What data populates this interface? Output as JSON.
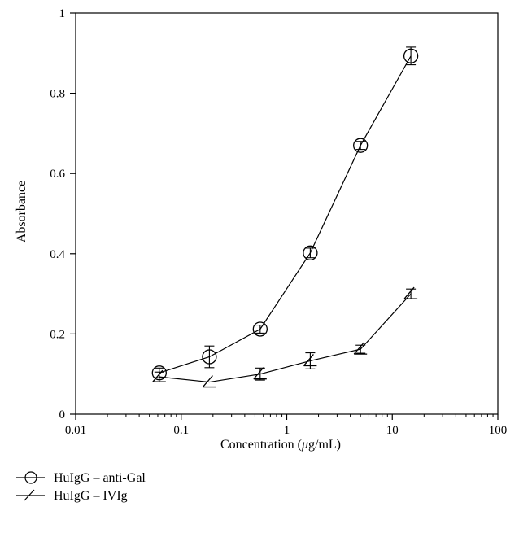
{
  "chart_data": {
    "type": "line",
    "xlabel_prefix": "Concentration (",
    "xlabel_mu": "μ",
    "xlabel_suffix": "g/mL)",
    "ylabel": "Absorbance",
    "x_scale": "log",
    "xlim": [
      0.01,
      100
    ],
    "ylim": [
      0,
      1
    ],
    "x_ticks": [
      0.01,
      0.1,
      1,
      10,
      100
    ],
    "x_tick_labels": [
      "0.01",
      "0.1",
      "1",
      "10",
      "100"
    ],
    "y_ticks": [
      0,
      0.2,
      0.4,
      0.6,
      0.8,
      1
    ],
    "y_tick_labels": [
      "0",
      "0.2",
      "0.4",
      "0.6",
      "0.8",
      "1"
    ],
    "grid": false,
    "legend_position": "bottom-left",
    "series": [
      {
        "name": "HuIgG – anti-Gal",
        "marker": "circle",
        "x": [
          0.062,
          0.185,
          0.56,
          1.67,
          5.0,
          15.0
        ],
        "y": [
          0.103,
          0.143,
          0.212,
          0.402,
          0.67,
          0.893
        ],
        "err": [
          0.012,
          0.027,
          0.01,
          0.012,
          0.01,
          0.022
        ]
      },
      {
        "name": "HuIgG – IVIg",
        "marker": "triangle",
        "x": [
          0.062,
          0.185,
          0.56,
          1.67,
          5.0,
          15.0
        ],
        "y": [
          0.093,
          0.08,
          0.1,
          0.133,
          0.162,
          0.3
        ],
        "err": [
          0.012,
          0.0,
          0.015,
          0.02,
          0.01,
          0.012
        ]
      }
    ]
  }
}
